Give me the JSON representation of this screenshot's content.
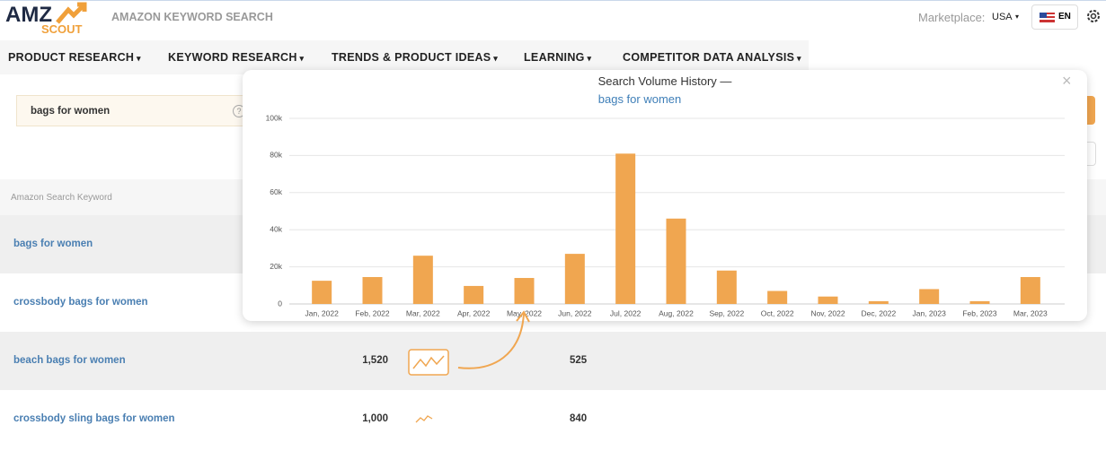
{
  "header": {
    "logo_top": "AMZ",
    "logo_bottom": "SCOUT",
    "title": "AMAZON KEYWORD SEARCH",
    "marketplace_label": "Marketplace:",
    "marketplace": "USA",
    "language": "EN"
  },
  "nav": [
    "PRODUCT RESEARCH",
    "KEYWORD RESEARCH",
    "TRENDS & PRODUCT IDEAS",
    "LEARNING",
    "COMPETITOR DATA ANALYSIS"
  ],
  "search": {
    "query": "bags for women",
    "help": "?"
  },
  "table": {
    "header": "Amazon Search Keyword",
    "rows": [
      [
        "bags for women"
      ],
      [
        "crossbody bags for women"
      ],
      [
        "beach bags for women",
        "1,520",
        "525"
      ],
      [
        "crossbody sling bags for women",
        "1,000",
        "840"
      ]
    ]
  },
  "chart_data": {
    "type": "bar",
    "title": "Search Volume History —",
    "subtitle": "bags for women",
    "categories": [
      "Jan, 2022",
      "Feb, 2022",
      "Mar, 2022",
      "Apr, 2022",
      "May, 2022",
      "Jun, 2022",
      "Jul, 2022",
      "Aug, 2022",
      "Sep, 2022",
      "Oct, 2022",
      "Nov, 2022",
      "Dec, 2022",
      "Jan, 2023",
      "Feb, 2023",
      "Mar, 2023"
    ],
    "values": [
      12500,
      14500,
      26000,
      9700,
      14000,
      27000,
      81000,
      46000,
      18000,
      7000,
      4000,
      1500,
      8000,
      1500,
      14500
    ],
    "color": "#f0a650",
    "ylim": [
      0,
      100000
    ],
    "yticks": [
      0,
      {
        "value": 20000,
        "label": "20k"
      },
      {
        "value": 40000,
        "label": "40k"
      },
      {
        "value": 60000,
        "label": "60k"
      },
      {
        "value": 80000,
        "label": "80k"
      },
      {
        "value": 100000,
        "label": "100k"
      }
    ],
    "grid": true
  }
}
